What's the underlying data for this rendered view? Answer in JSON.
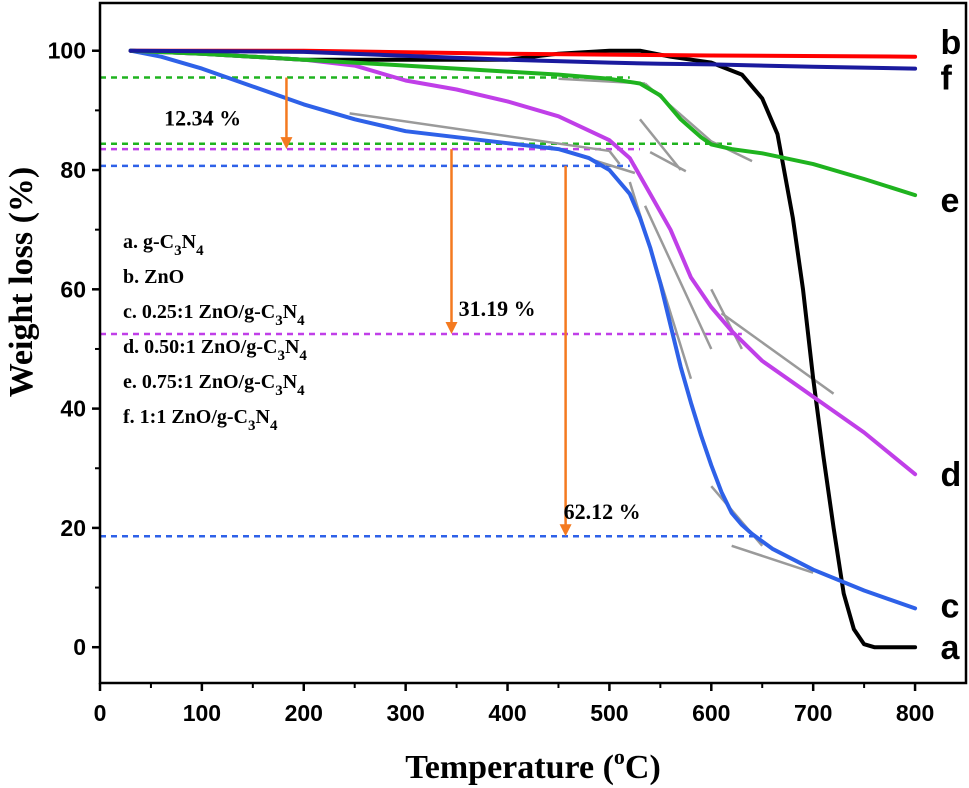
{
  "chart_data": {
    "type": "line",
    "xlabel": "Temperature (",
    "xlabel_sup": "o",
    "xlabel_end": "C)",
    "ylabel": "Weight loss (%)",
    "xlim": [
      0,
      850
    ],
    "ylim": [
      -6,
      108
    ],
    "x_ticks": [
      0,
      100,
      200,
      300,
      400,
      500,
      600,
      700,
      800
    ],
    "y_ticks": [
      0,
      20,
      40,
      60,
      80,
      100
    ],
    "legend": [
      {
        "prefix": "a. g-C",
        "sub1": "3",
        "mid": "N",
        "sub2": "4",
        "rest": ""
      },
      {
        "prefix": "b. ZnO",
        "sub1": "",
        "mid": "",
        "sub2": "",
        "rest": ""
      },
      {
        "prefix": "c. 0.25:1 ZnO/g-C",
        "sub1": "3",
        "mid": "N",
        "sub2": "4",
        "rest": ""
      },
      {
        "prefix": "d. 0.50:1 ZnO/g-C",
        "sub1": "3",
        "mid": "N",
        "sub2": "4",
        "rest": ""
      },
      {
        "prefix": "e. 0.75:1 ZnO/g-C",
        "sub1": "3",
        "mid": "N",
        "sub2": "4",
        "rest": ""
      },
      {
        "prefix": "f. 1:1 ZnO/g-C",
        "sub1": "3",
        "mid": "N",
        "sub2": "4",
        "rest": ""
      }
    ],
    "series": [
      {
        "name": "a",
        "color": "#000000",
        "x": [
          30,
          100,
          200,
          300,
          400,
          450,
          500,
          530,
          560,
          600,
          630,
          650,
          665,
          680,
          690,
          700,
          710,
          720,
          730,
          740,
          750,
          760,
          800
        ],
        "y": [
          100,
          99.5,
          98.5,
          98.5,
          98.5,
          99.5,
          100,
          100,
          99,
          98,
          96,
          92,
          86,
          72,
          60,
          45,
          32,
          20,
          9,
          3,
          0.5,
          0,
          0
        ]
      },
      {
        "name": "b",
        "color": "#ff0000",
        "x": [
          30,
          200,
          400,
          600,
          800
        ],
        "y": [
          100,
          100,
          99.5,
          99.2,
          99
        ]
      },
      {
        "name": "c",
        "color": "#2e61e8",
        "x": [
          30,
          60,
          100,
          150,
          200,
          250,
          300,
          350,
          400,
          450,
          480,
          500,
          520,
          530,
          540,
          550,
          560,
          570,
          580,
          590,
          600,
          610,
          620,
          630,
          640,
          660,
          700,
          750,
          800
        ],
        "y": [
          100,
          99,
          97,
          94,
          91,
          88.5,
          86.5,
          85.5,
          84.5,
          83.5,
          82,
          80,
          76,
          72,
          67,
          61,
          54,
          47,
          41,
          35.5,
          30.5,
          26,
          22.5,
          20.5,
          19,
          16.5,
          13,
          9.5,
          6.5
        ]
      },
      {
        "name": "d",
        "color": "#c03fe8",
        "x": [
          30,
          100,
          200,
          250,
          300,
          350,
          400,
          450,
          500,
          520,
          540,
          560,
          570,
          580,
          600,
          620,
          650,
          700,
          750,
          800
        ],
        "y": [
          100,
          99.5,
          98.5,
          97.5,
          95,
          93.5,
          91.5,
          89,
          85,
          82,
          76,
          70,
          66,
          62,
          57,
          53,
          48,
          42,
          36,
          29
        ]
      },
      {
        "name": "e",
        "color": "#1fb31f",
        "x": [
          30,
          100,
          200,
          300,
          400,
          450,
          500,
          530,
          550,
          570,
          590,
          600,
          620,
          650,
          700,
          750,
          800
        ],
        "y": [
          100,
          99.5,
          98.5,
          97.5,
          96.5,
          96,
          95.3,
          94.5,
          92.5,
          88.5,
          85.5,
          84.3,
          83.5,
          82.8,
          81,
          78.5,
          75.8
        ]
      },
      {
        "name": "f",
        "color": "#1a1a9e",
        "x": [
          30,
          200,
          400,
          500,
          550,
          600,
          700,
          800
        ],
        "y": [
          100,
          99.8,
          98.5,
          98,
          97.8,
          97.7,
          97.3,
          97
        ]
      }
    ],
    "curve_labels": [
      {
        "text": "b",
        "x": 825,
        "y": 101.5
      },
      {
        "text": "f",
        "x": 825,
        "y": 95.5
      },
      {
        "text": "e",
        "x": 825,
        "y": 75
      },
      {
        "text": "d",
        "x": 825,
        "y": 29
      },
      {
        "text": "c",
        "x": 825,
        "y": 7
      },
      {
        "text": "a",
        "x": 825,
        "y": 0
      }
    ],
    "ref_lines": [
      {
        "color": "#1fb31f",
        "y": 95.5,
        "x1": 0,
        "x2": 520
      },
      {
        "color": "#1fb31f",
        "y": 84.4,
        "x1": 0,
        "x2": 620
      },
      {
        "color": "#c03fe8",
        "y": 83.5,
        "x1": 0,
        "x2": 530
      },
      {
        "color": "#2e61e8",
        "y": 80.7,
        "x1": 0,
        "x2": 520
      },
      {
        "color": "#c03fe8",
        "y": 52.5,
        "x1": 0,
        "x2": 630
      },
      {
        "color": "#2e61e8",
        "y": 18.6,
        "x1": 0,
        "x2": 650
      }
    ],
    "arrows": [
      {
        "x": 183,
        "y1": 95.5,
        "y2": 83.5
      },
      {
        "x": 345,
        "y1": 83.5,
        "y2": 52.5
      },
      {
        "x": 457,
        "y1": 80.7,
        "y2": 18.6
      }
    ],
    "tangents": [
      [
        245,
        89.5,
        500,
        83.2
      ],
      [
        500,
        83.2,
        510,
        81.0
      ],
      [
        440,
        84.0,
        525,
        79.5
      ],
      [
        520,
        78.0,
        580,
        45.0
      ],
      [
        535,
        74.0,
        600,
        50.0
      ],
      [
        620,
        17.0,
        700,
        12.5
      ],
      [
        600,
        27.0,
        650,
        17.0
      ],
      [
        450,
        95.3,
        535,
        94.5
      ],
      [
        535,
        94.5,
        600,
        84.8
      ],
      [
        600,
        84.8,
        640,
        81.5
      ],
      [
        530,
        88.5,
        570,
        80.0
      ],
      [
        540,
        83.0,
        575,
        79.8
      ],
      [
        610,
        56.0,
        720,
        42.5
      ],
      [
        600,
        60.0,
        630,
        50.0
      ]
    ],
    "annotations": [
      {
        "text": "12.34 %",
        "x": 63,
        "y": 87.5
      },
      {
        "text": "31.19 %",
        "x": 352,
        "y": 55.5
      },
      {
        "text": "62.12 %",
        "x": 455,
        "y": 21.5
      }
    ]
  }
}
